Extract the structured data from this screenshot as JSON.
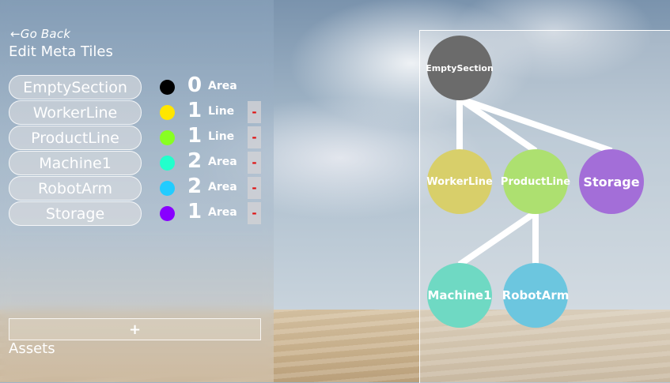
{
  "nav": {
    "go_back": "←Go Back"
  },
  "page": {
    "title": "Edit Meta Tiles"
  },
  "tiles": [
    {
      "name": "EmptySection",
      "color": "#000000",
      "count": "0",
      "type": "Area",
      "removable": false
    },
    {
      "name": "WorkerLine",
      "color": "#ffe600",
      "count": "1",
      "type": "Line",
      "removable": true,
      "remove_label": "-"
    },
    {
      "name": "ProductLine",
      "color": "#88ff22",
      "count": "1",
      "type": "Line",
      "removable": true,
      "remove_label": "-"
    },
    {
      "name": "Machine1",
      "color": "#22ffcc",
      "count": "2",
      "type": "Area",
      "removable": true,
      "remove_label": "-"
    },
    {
      "name": "RobotArm",
      "color": "#22ccff",
      "count": "2",
      "type": "Area",
      "removable": true,
      "remove_label": "-"
    },
    {
      "name": "Storage",
      "color": "#8800ff",
      "count": "1",
      "type": "Area",
      "removable": true,
      "remove_label": "-"
    }
  ],
  "add_button": {
    "label": "+"
  },
  "assets": {
    "label": "Assets"
  },
  "tree": {
    "nodes": [
      {
        "id": "EmptySection",
        "label": "EmptySection",
        "color": "#6b6b6b"
      },
      {
        "id": "WorkerLine",
        "label": "WorkerLine",
        "color": "#d8cf6a"
      },
      {
        "id": "ProductLine",
        "label": "ProductLine",
        "color": "#ade070"
      },
      {
        "id": "Storage",
        "label": "Storage",
        "color": "#a36ed8"
      },
      {
        "id": "Machine1",
        "label": "Machine1",
        "color": "#6fd9c3"
      },
      {
        "id": "RobotArm",
        "label": "RobotArm",
        "color": "#6cc6df"
      }
    ],
    "edges": [
      [
        "EmptySection",
        "WorkerLine"
      ],
      [
        "EmptySection",
        "ProductLine"
      ],
      [
        "EmptySection",
        "Storage"
      ],
      [
        "ProductLine",
        "Machine1"
      ],
      [
        "ProductLine",
        "RobotArm"
      ]
    ]
  }
}
